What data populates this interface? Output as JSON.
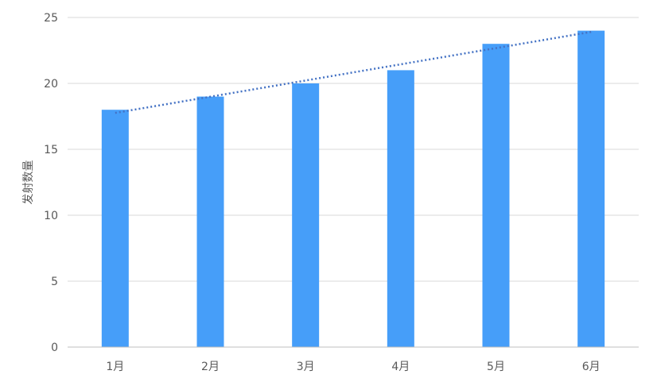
{
  "chart_data": {
    "type": "bar",
    "categories": [
      "1月",
      "2月",
      "3月",
      "4月",
      "5月",
      "6月"
    ],
    "values": [
      18,
      19,
      20,
      21,
      23,
      24
    ],
    "ylabel": "发射数量",
    "ylim": [
      0,
      25
    ],
    "yticks": [
      0,
      5,
      10,
      15,
      20,
      25
    ],
    "grid": true,
    "trendline": {
      "type": "linear",
      "style": "dotted"
    },
    "colors": {
      "bar": "#469EF9",
      "trendline": "#4472C4",
      "grid": "#D9D9D9",
      "axis": "#BFBFBF",
      "text": "#595959"
    }
  }
}
